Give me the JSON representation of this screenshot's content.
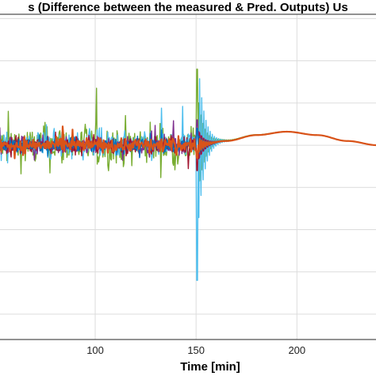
{
  "chart_data": {
    "type": "line",
    "title": "s (Difference between the measured & Pred. Outputs) Us",
    "xlabel": "Time [min]",
    "ylabel": "",
    "x_ticks": [
      100,
      150,
      200
    ],
    "xlim": [
      52,
      240
    ],
    "ylim": [
      -2.3,
      1.55
    ],
    "grid": true,
    "series": [
      {
        "color": "#77AC30",
        "noise_before_150": 0.12,
        "spike_at_150": 0.9,
        "settle_level": 0.02
      },
      {
        "color": "#4DBEEE",
        "noise_before_150": 0.08,
        "spike_at_150": 1.6,
        "settle_level": 0.0
      },
      {
        "color": "#7E2F8E",
        "noise_before_150": 0.05,
        "spike_at_150": 0.3,
        "settle_level": 0.0
      },
      {
        "color": "#A2142F",
        "noise_before_150": 0.05,
        "spike_at_150": 0.3,
        "settle_level": 0.0
      },
      {
        "color": "#0072BD",
        "noise_before_150": 0.04,
        "spike_at_150": 0.2,
        "settle_level": 0.0
      },
      {
        "color": "#D95319",
        "noise_before_150": 0.04,
        "spike_at_150": 0.15,
        "settle_level": 0.0
      }
    ],
    "post_transient": [
      {
        "x": 150,
        "y": 0.0
      },
      {
        "x": 165,
        "y": 0.05
      },
      {
        "x": 180,
        "y": 0.12
      },
      {
        "x": 195,
        "y": 0.16
      },
      {
        "x": 210,
        "y": 0.12
      },
      {
        "x": 225,
        "y": 0.05
      },
      {
        "x": 240,
        "y": 0.0
      }
    ]
  }
}
